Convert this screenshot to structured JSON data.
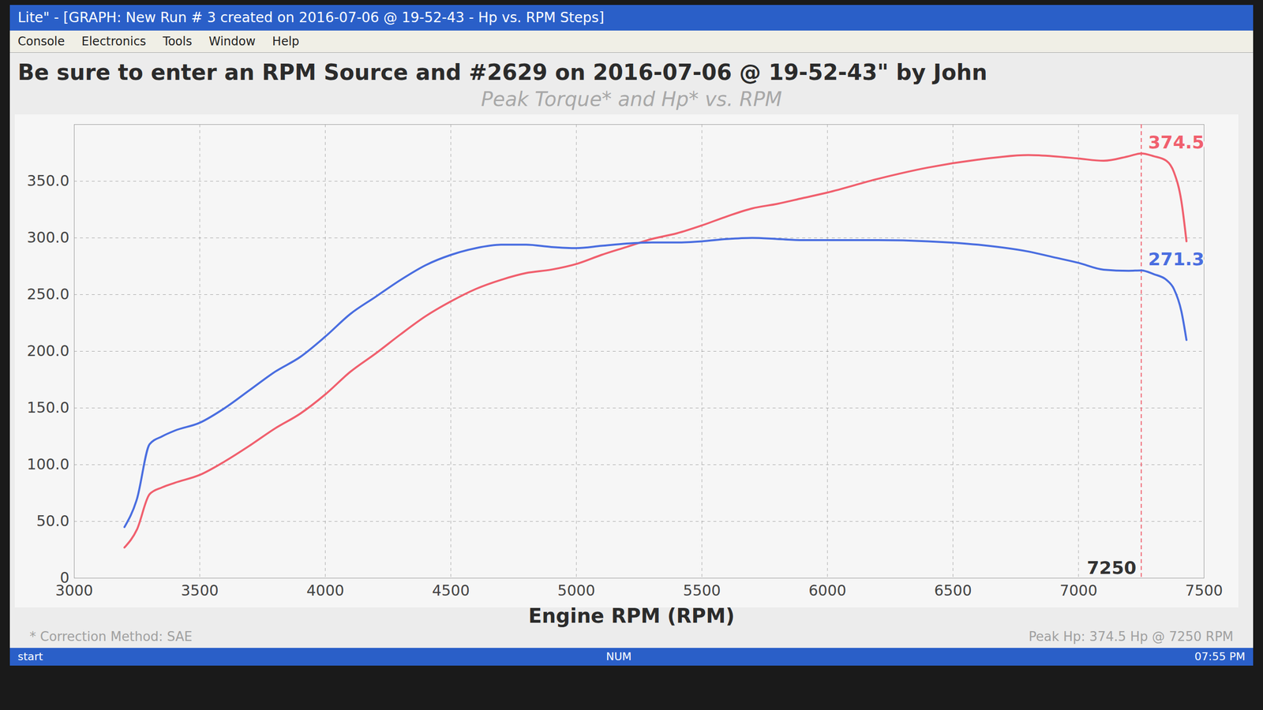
{
  "window": {
    "title": "Lite\" - [GRAPH: New Run # 3 created on 2016-07-06 @ 19-52-43 - Hp vs. RPM Steps]",
    "menu": [
      "Console",
      "Electronics",
      "Tools",
      "Window",
      "Help"
    ],
    "status": [
      "start",
      "NUM",
      "07:55 PM"
    ]
  },
  "chart_data": {
    "type": "line",
    "title": "Be sure to enter an RPM Source and #2629 on 2016-07-06 @ 19-52-43\" by John",
    "subtitle": "Peak Torque* and Hp* vs. RPM",
    "x_label": "Engine RPM (RPM)",
    "caption": [
      "* Correction Method: SAE",
      "Peak Hp: 374.5 Hp @ 7250 RPM"
    ],
    "x": [
      3200,
      3250,
      3300,
      3350,
      3400,
      3500,
      3600,
      3700,
      3800,
      3900,
      4000,
      4100,
      4200,
      4300,
      4400,
      4500,
      4600,
      4700,
      4800,
      4900,
      5000,
      5100,
      5200,
      5300,
      5400,
      5500,
      5600,
      5700,
      5800,
      5900,
      6000,
      6200,
      6400,
      6600,
      6800,
      6900,
      7000,
      7100,
      7200,
      7250,
      7300,
      7350,
      7380,
      7410,
      7430
    ],
    "series": [
      {
        "color": "#f0606e",
        "values": [
          27,
          43,
          74,
          80,
          84,
          91,
          103,
          117,
          132,
          145,
          162,
          182,
          198,
          215,
          231,
          244,
          255,
          263,
          269,
          272,
          277,
          285,
          292,
          299,
          304,
          311,
          319,
          326,
          330,
          335,
          340,
          352,
          362,
          369,
          373,
          372,
          370,
          368,
          372,
          374.5,
          372,
          368,
          358,
          332,
          297
        ]
      },
      {
        "color": "#4a6ee0",
        "values": [
          45,
          70,
          118,
          125,
          130,
          137,
          150,
          166,
          182,
          195,
          213,
          233,
          248,
          263,
          276,
          285,
          291,
          294,
          294,
          292,
          291,
          293,
          295,
          296,
          296,
          297,
          299,
          300,
          299,
          298,
          298,
          298,
          297,
          294,
          288,
          283,
          278,
          272,
          271,
          271.3,
          268,
          263,
          255,
          235,
          210
        ]
      }
    ],
    "annotations": [
      {
        "text": "374.5",
        "x": 7250,
        "y": 374.5,
        "color": "#f0606e"
      },
      {
        "text": "271.3",
        "x": 7250,
        "y": 271.3,
        "color": "#4a6ee0"
      },
      {
        "text": "7250",
        "x": 7250,
        "y": 0,
        "color": "#333333",
        "line_style": "dashed"
      }
    ],
    "xlim": [
      3000,
      7500
    ],
    "xticks": [
      3000,
      3500,
      4000,
      4500,
      5000,
      5500,
      6000,
      6500,
      7000,
      7500
    ],
    "ylim": [
      0,
      400
    ],
    "yticks": [
      0,
      {
        "value": 50,
        "label": "50.0"
      },
      {
        "value": 100,
        "label": "100.0"
      },
      {
        "value": 150,
        "label": "150.0"
      },
      {
        "value": 200,
        "label": "200.0"
      },
      {
        "value": 250,
        "label": "250.0"
      },
      {
        "value": 300,
        "label": "300.0"
      },
      {
        "value": 350,
        "label": "350.0"
      }
    ],
    "grid": true
  }
}
